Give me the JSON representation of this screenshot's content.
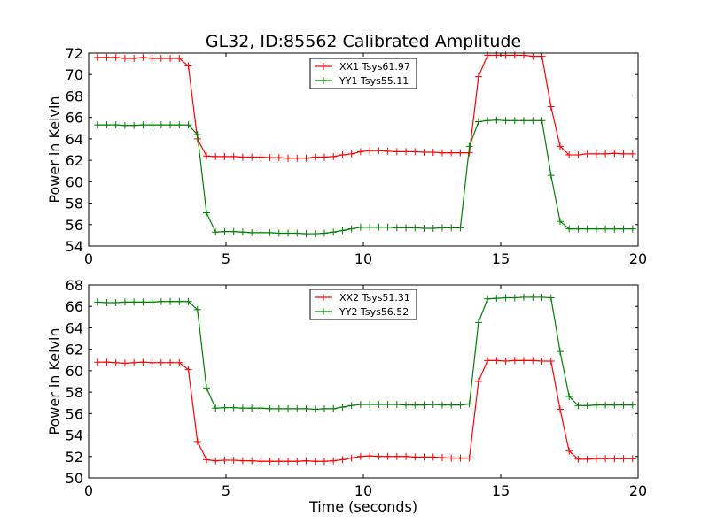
{
  "figure": {
    "title": "GL32, ID:85562 Calibrated Amplitude"
  },
  "chart_data": [
    {
      "type": "line",
      "title": "GL32, ID:85562 Calibrated Amplitude",
      "xlabel": "",
      "ylabel": "Power in Kelvin",
      "xlim": [
        0,
        20
      ],
      "ylim": [
        54,
        72
      ],
      "xticks": [
        0,
        5,
        10,
        15,
        20
      ],
      "yticks": [
        54,
        56,
        58,
        60,
        62,
        64,
        66,
        68,
        70,
        72
      ],
      "grid": false,
      "legend_position": "top-center",
      "x": [
        0.33,
        0.66,
        0.99,
        1.32,
        1.65,
        1.98,
        2.31,
        2.64,
        2.97,
        3.3,
        3.63,
        3.96,
        4.29,
        4.62,
        4.95,
        5.28,
        5.61,
        5.94,
        6.27,
        6.6,
        6.93,
        7.26,
        7.59,
        7.92,
        8.25,
        8.58,
        8.91,
        9.24,
        9.57,
        9.9,
        10.23,
        10.56,
        10.89,
        11.22,
        11.55,
        11.88,
        12.21,
        12.54,
        12.87,
        13.2,
        13.53,
        13.86,
        14.19,
        14.52,
        14.85,
        15.18,
        15.51,
        15.84,
        16.17,
        16.5,
        16.83,
        17.16,
        17.49,
        17.82,
        18.15,
        18.48,
        18.81,
        19.14,
        19.47,
        19.8
      ],
      "series": [
        {
          "name": "XX1 Tsys61.97",
          "color": "#ff0000",
          "values": [
            71.6,
            71.6,
            71.6,
            71.5,
            71.5,
            71.6,
            71.5,
            71.5,
            71.5,
            71.5,
            70.8,
            64.0,
            62.4,
            62.35,
            62.35,
            62.35,
            62.3,
            62.3,
            62.3,
            62.25,
            62.25,
            62.2,
            62.2,
            62.2,
            62.3,
            62.3,
            62.35,
            62.5,
            62.6,
            62.8,
            62.9,
            62.9,
            62.85,
            62.8,
            62.8,
            62.8,
            62.75,
            62.75,
            62.7,
            62.7,
            62.7,
            62.7,
            69.8,
            71.8,
            71.8,
            71.8,
            71.8,
            71.8,
            71.7,
            71.7,
            67.0,
            63.3,
            62.5,
            62.5,
            62.6,
            62.6,
            62.6,
            62.65,
            62.6,
            62.6
          ]
        },
        {
          "name": "YY1 Tsys55.11",
          "color": "#008000",
          "values": [
            65.3,
            65.3,
            65.3,
            65.25,
            65.25,
            65.3,
            65.3,
            65.3,
            65.3,
            65.3,
            65.3,
            64.4,
            57.1,
            55.3,
            55.35,
            55.35,
            55.3,
            55.25,
            55.25,
            55.25,
            55.2,
            55.2,
            55.2,
            55.15,
            55.15,
            55.2,
            55.3,
            55.45,
            55.6,
            55.75,
            55.75,
            55.75,
            55.75,
            55.7,
            55.7,
            55.7,
            55.65,
            55.65,
            55.7,
            55.7,
            55.7,
            63.3,
            65.6,
            65.7,
            65.75,
            65.7,
            65.7,
            65.7,
            65.7,
            65.7,
            60.6,
            56.3,
            55.6,
            55.6,
            55.6,
            55.6,
            55.6,
            55.6,
            55.6,
            55.6
          ]
        }
      ]
    },
    {
      "type": "line",
      "title": "",
      "xlabel": "Time (seconds)",
      "ylabel": "Power in Kelvin",
      "xlim": [
        0,
        20
      ],
      "ylim": [
        50,
        68
      ],
      "xticks": [
        0,
        5,
        10,
        15,
        20
      ],
      "yticks": [
        50,
        52,
        54,
        56,
        58,
        60,
        62,
        64,
        66,
        68
      ],
      "grid": false,
      "legend_position": "top-center",
      "x": [
        0.33,
        0.66,
        0.99,
        1.32,
        1.65,
        1.98,
        2.31,
        2.64,
        2.97,
        3.3,
        3.63,
        3.96,
        4.29,
        4.62,
        4.95,
        5.28,
        5.61,
        5.94,
        6.27,
        6.6,
        6.93,
        7.26,
        7.59,
        7.92,
        8.25,
        8.58,
        8.91,
        9.24,
        9.57,
        9.9,
        10.23,
        10.56,
        10.89,
        11.22,
        11.55,
        11.88,
        12.21,
        12.54,
        12.87,
        13.2,
        13.53,
        13.86,
        14.19,
        14.52,
        14.85,
        15.18,
        15.51,
        15.84,
        16.17,
        16.5,
        16.83,
        17.16,
        17.49,
        17.82,
        18.15,
        18.48,
        18.81,
        19.14,
        19.47,
        19.8
      ],
      "series": [
        {
          "name": "XX2 Tsys51.31",
          "color": "#ff0000",
          "values": [
            60.8,
            60.8,
            60.75,
            60.7,
            60.75,
            60.8,
            60.75,
            60.75,
            60.75,
            60.75,
            60.1,
            53.4,
            51.7,
            51.6,
            51.65,
            51.65,
            51.6,
            51.6,
            51.55,
            51.55,
            51.55,
            51.55,
            51.55,
            51.6,
            51.55,
            51.55,
            51.6,
            51.7,
            51.85,
            52.0,
            52.05,
            52.0,
            52.0,
            52.0,
            52.0,
            51.95,
            51.95,
            51.95,
            51.9,
            51.85,
            51.85,
            51.85,
            59.0,
            60.95,
            60.95,
            60.9,
            60.95,
            60.95,
            60.95,
            60.9,
            60.9,
            56.4,
            52.5,
            51.75,
            51.75,
            51.8,
            51.8,
            51.8,
            51.8,
            51.8
          ]
        },
        {
          "name": "YY2 Tsys56.52",
          "color": "#008000",
          "values": [
            66.4,
            66.35,
            66.35,
            66.4,
            66.4,
            66.4,
            66.4,
            66.45,
            66.45,
            66.45,
            66.45,
            65.7,
            58.4,
            56.5,
            56.55,
            56.55,
            56.5,
            56.5,
            56.5,
            56.45,
            56.45,
            56.45,
            56.45,
            56.45,
            56.4,
            56.45,
            56.45,
            56.6,
            56.75,
            56.85,
            56.85,
            56.85,
            56.85,
            56.85,
            56.8,
            56.8,
            56.8,
            56.85,
            56.8,
            56.8,
            56.8,
            56.9,
            64.5,
            66.7,
            66.75,
            66.8,
            66.8,
            66.85,
            66.85,
            66.85,
            66.8,
            61.8,
            57.6,
            56.75,
            56.75,
            56.8,
            56.8,
            56.8,
            56.8,
            56.8
          ]
        }
      ]
    }
  ]
}
